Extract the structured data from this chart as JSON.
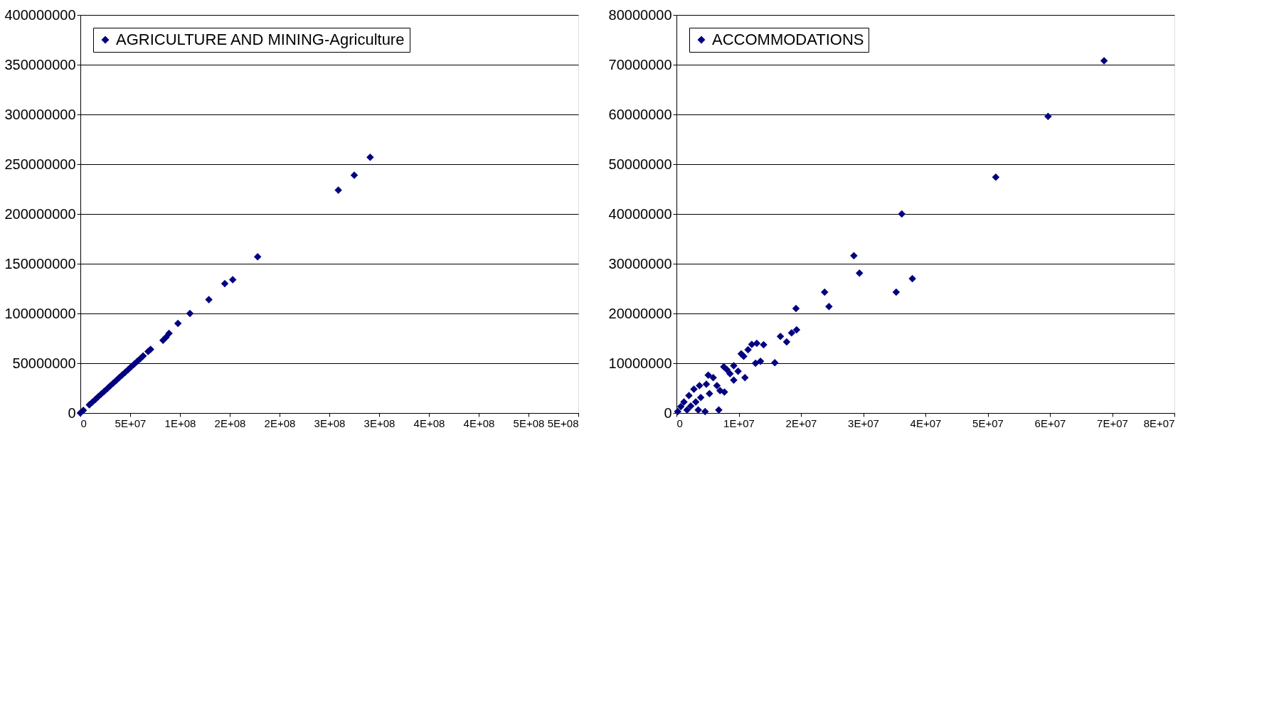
{
  "chart_data": [
    {
      "type": "scatter",
      "xlim": [
        0,
        500000000
      ],
      "ylim": [
        0,
        400000000
      ],
      "xticks": [
        {
          "value": 0,
          "label": "0"
        },
        {
          "value": 50000000,
          "label": "5E+07"
        },
        {
          "value": 100000000,
          "label": "1E+08"
        },
        {
          "value": 150000000,
          "label": "2E+08"
        },
        {
          "value": 200000000,
          "label": "2E+08"
        },
        {
          "value": 250000000,
          "label": "3E+08"
        },
        {
          "value": 300000000,
          "label": "3E+08"
        },
        {
          "value": 350000000,
          "label": "4E+08"
        },
        {
          "value": 400000000,
          "label": "4E+08"
        },
        {
          "value": 450000000,
          "label": "5E+08"
        },
        {
          "value": 500000000,
          "label": "5E+08"
        }
      ],
      "yticks": [
        0,
        50000000,
        100000000,
        150000000,
        200000000,
        250000000,
        300000000,
        350000000,
        400000000
      ],
      "grid": "y",
      "legend": "top left",
      "marker": "diamond",
      "series": [
        {
          "name": "AGRICULTURE AND MINING-Agriculture",
          "color": "#000080",
          "x": [
            0,
            3000000,
            9000000,
            12000000,
            15000000,
            18000000,
            21000000,
            24000000,
            27000000,
            30000000,
            33000000,
            36000000,
            39000000,
            42000000,
            45000000,
            48000000,
            51000000,
            54000000,
            57000000,
            60000000,
            63000000,
            68000000,
            70500000,
            83000000,
            86000000,
            89000000,
            98000000,
            110000000,
            129000000,
            145000000,
            153000000,
            178000000,
            259000000,
            275000000,
            291000000
          ],
          "values": [
            0,
            2700000,
            8200000,
            10900000,
            13600000,
            16400000,
            19100000,
            21800000,
            24500000,
            27300000,
            30000000,
            32700000,
            35500000,
            38200000,
            40900000,
            43600000,
            46400000,
            49100000,
            51800000,
            54500000,
            57300000,
            61800000,
            64000000,
            73000000,
            76000000,
            80000000,
            90000000,
            100000000,
            114000000,
            130000000,
            134000000,
            157000000,
            224000000,
            239000000,
            257000000
          ]
        }
      ]
    },
    {
      "type": "scatter",
      "xlim": [
        0,
        80000000
      ],
      "ylim": [
        0,
        80000000
      ],
      "xticks": [
        {
          "value": 0,
          "label": "0"
        },
        {
          "value": 10000000,
          "label": "1E+07"
        },
        {
          "value": 20000000,
          "label": "2E+07"
        },
        {
          "value": 30000000,
          "label": "3E+07"
        },
        {
          "value": 40000000,
          "label": "4E+07"
        },
        {
          "value": 50000000,
          "label": "5E+07"
        },
        {
          "value": 60000000,
          "label": "6E+07"
        },
        {
          "value": 70000000,
          "label": "7E+07"
        },
        {
          "value": 80000000,
          "label": "8E+07"
        }
      ],
      "yticks": [
        0,
        10000000,
        20000000,
        30000000,
        40000000,
        50000000,
        60000000,
        70000000,
        80000000
      ],
      "grid": "y",
      "legend": "top left",
      "marker": "diamond",
      "series": [
        {
          "name": "ACCOMMODATIONS",
          "color": "#000080",
          "x": [
            68700000,
            59700000,
            51300000,
            36200000,
            28500000,
            29400000,
            23800000,
            24500000,
            35300000,
            37900000,
            19200000,
            19300000,
            18500000,
            16700000,
            17700000,
            15800000,
            14000000,
            13500000,
            12700000,
            12900000,
            12100000,
            11500000,
            10800000,
            10400000,
            11000000,
            9200000,
            8100000,
            7600000,
            7000000,
            6800000,
            4600000,
            3500000,
            5900000,
            5100000,
            4800000,
            3700000,
            2800000,
            2000000,
            1200000,
            700000,
            200000,
            6500000,
            7700000,
            5300000,
            3900000,
            3100000,
            2300000,
            1700000,
            9200000,
            8600000,
            9900000
          ],
          "values": [
            70800000,
            59600000,
            47400000,
            40000000,
            31600000,
            28100000,
            24300000,
            21400000,
            24300000,
            27000000,
            21000000,
            16700000,
            16100000,
            15400000,
            14300000,
            10100000,
            13700000,
            10400000,
            10000000,
            14000000,
            13800000,
            12700000,
            11400000,
            11900000,
            7100000,
            6600000,
            8700000,
            9300000,
            4500000,
            600000,
            300000,
            600000,
            7100000,
            7600000,
            5800000,
            5500000,
            4800000,
            3500000,
            2200000,
            1300000,
            300000,
            5500000,
            4200000,
            3900000,
            3100000,
            2200000,
            1400000,
            600000,
            9500000,
            7900000,
            8400000
          ]
        }
      ]
    }
  ]
}
